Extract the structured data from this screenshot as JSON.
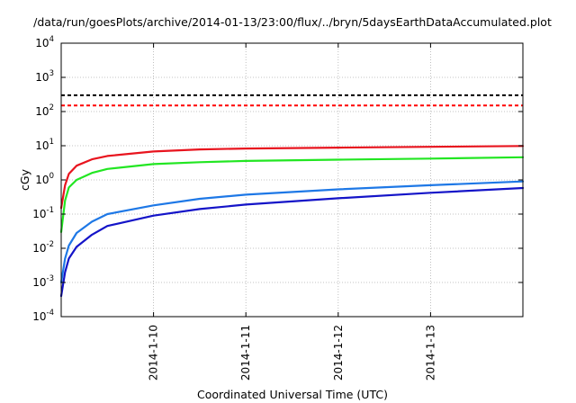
{
  "chart_data": {
    "type": "line",
    "title": "/data/run/goesPlots/archive/2014-01-13/23:00/flux/../bryn/5daysEarthDataAccumulated.plot",
    "xlabel": "Coordinated Universal Time (UTC)",
    "ylabel": "cGy",
    "x_scale": "time",
    "y_scale": "log",
    "xlim": [
      "2014-01-09T00:00",
      "2014-01-14T00:00"
    ],
    "ylim": [
      0.0001,
      10000
    ],
    "x_ticks": [
      "2014-1-10",
      "2014-1-11",
      "2014-1-12",
      "2014-1-13"
    ],
    "y_ticks": [
      {
        "value": 0.0001,
        "base": "10",
        "exp": "-4"
      },
      {
        "value": 0.001,
        "base": "10",
        "exp": "-3"
      },
      {
        "value": 0.01,
        "base": "10",
        "exp": "-2"
      },
      {
        "value": 0.1,
        "base": "10",
        "exp": "-1"
      },
      {
        "value": 1,
        "base": "10",
        "exp": "0"
      },
      {
        "value": 10,
        "base": "10",
        "exp": "1"
      },
      {
        "value": 100,
        "base": "10",
        "exp": "2"
      },
      {
        "value": 1000,
        "base": "10",
        "exp": "3"
      },
      {
        "value": 10000,
        "base": "10",
        "exp": "4"
      }
    ],
    "grid": true,
    "reference_lines": [
      {
        "value": 300,
        "color": "#000000",
        "style": "dashed"
      },
      {
        "value": 150,
        "color": "#ff0000",
        "style": "dashed"
      }
    ],
    "series": [
      {
        "color": "#e8141e",
        "x": [
          "2014-01-09T00:00",
          "2014-01-09T01:00",
          "2014-01-09T02:00",
          "2014-01-09T04:00",
          "2014-01-09T08:00",
          "2014-01-09T12:00",
          "2014-01-10T00:00",
          "2014-01-10T12:00",
          "2014-01-11T00:00",
          "2014-01-12T00:00",
          "2014-01-13T00:00",
          "2014-01-14T00:00"
        ],
        "y": [
          0.15,
          0.7,
          1.5,
          2.6,
          4.0,
          5.0,
          6.8,
          7.8,
          8.3,
          8.8,
          9.3,
          9.8
        ]
      },
      {
        "color": "#22e622",
        "x": [
          "2014-01-09T00:00",
          "2014-01-09T01:00",
          "2014-01-09T02:00",
          "2014-01-09T04:00",
          "2014-01-09T08:00",
          "2014-01-09T12:00",
          "2014-01-10T00:00",
          "2014-01-10T12:00",
          "2014-01-11T00:00",
          "2014-01-12T00:00",
          "2014-01-13T00:00",
          "2014-01-14T00:00"
        ],
        "y": [
          0.03,
          0.25,
          0.6,
          1.0,
          1.6,
          2.1,
          2.9,
          3.3,
          3.6,
          3.9,
          4.2,
          4.6
        ]
      },
      {
        "color": "#1e78e6",
        "x": [
          "2014-01-09T00:00",
          "2014-01-09T01:00",
          "2014-01-09T02:00",
          "2014-01-09T04:00",
          "2014-01-09T08:00",
          "2014-01-09T12:00",
          "2014-01-10T00:00",
          "2014-01-10T12:00",
          "2014-01-11T00:00",
          "2014-01-12T00:00",
          "2014-01-13T00:00",
          "2014-01-14T00:00"
        ],
        "y": [
          0.001,
          0.005,
          0.012,
          0.028,
          0.06,
          0.1,
          0.18,
          0.28,
          0.37,
          0.53,
          0.7,
          0.9
        ]
      },
      {
        "color": "#1414c8",
        "x": [
          "2014-01-09T00:00",
          "2014-01-09T01:00",
          "2014-01-09T02:00",
          "2014-01-09T04:00",
          "2014-01-09T08:00",
          "2014-01-09T12:00",
          "2014-01-10T00:00",
          "2014-01-10T12:00",
          "2014-01-11T00:00",
          "2014-01-12T00:00",
          "2014-01-13T00:00",
          "2014-01-14T00:00"
        ],
        "y": [
          0.0004,
          0.002,
          0.005,
          0.011,
          0.025,
          0.045,
          0.09,
          0.14,
          0.19,
          0.29,
          0.42,
          0.58
        ]
      }
    ]
  }
}
